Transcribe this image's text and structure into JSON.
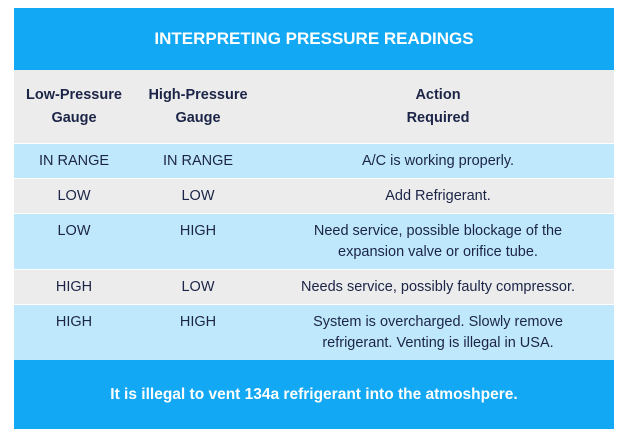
{
  "header": {
    "title": "INTERPRETING PRESSURE READINGS"
  },
  "table": {
    "columns": [
      [
        "Low-Pressure",
        "Gauge"
      ],
      [
        "High-Pressure",
        "Gauge"
      ],
      [
        "Action",
        "Required"
      ]
    ],
    "rows": [
      [
        "IN RANGE",
        "IN RANGE",
        "A/C is working properly."
      ],
      [
        "LOW",
        "LOW",
        "Add Refrigerant."
      ],
      [
        "LOW",
        "HIGH",
        "Need service, possible blockage of the expansion valve or orifice tube."
      ],
      [
        "HIGH",
        "LOW",
        "Needs service, possibly faulty compressor."
      ],
      [
        "HIGH",
        "HIGH",
        "System is overcharged. Slowly remove refrigerant. Venting is illegal in USA."
      ]
    ]
  },
  "footer": {
    "note": "It is illegal to vent 134a refrigerant into the atmoshpere."
  }
}
